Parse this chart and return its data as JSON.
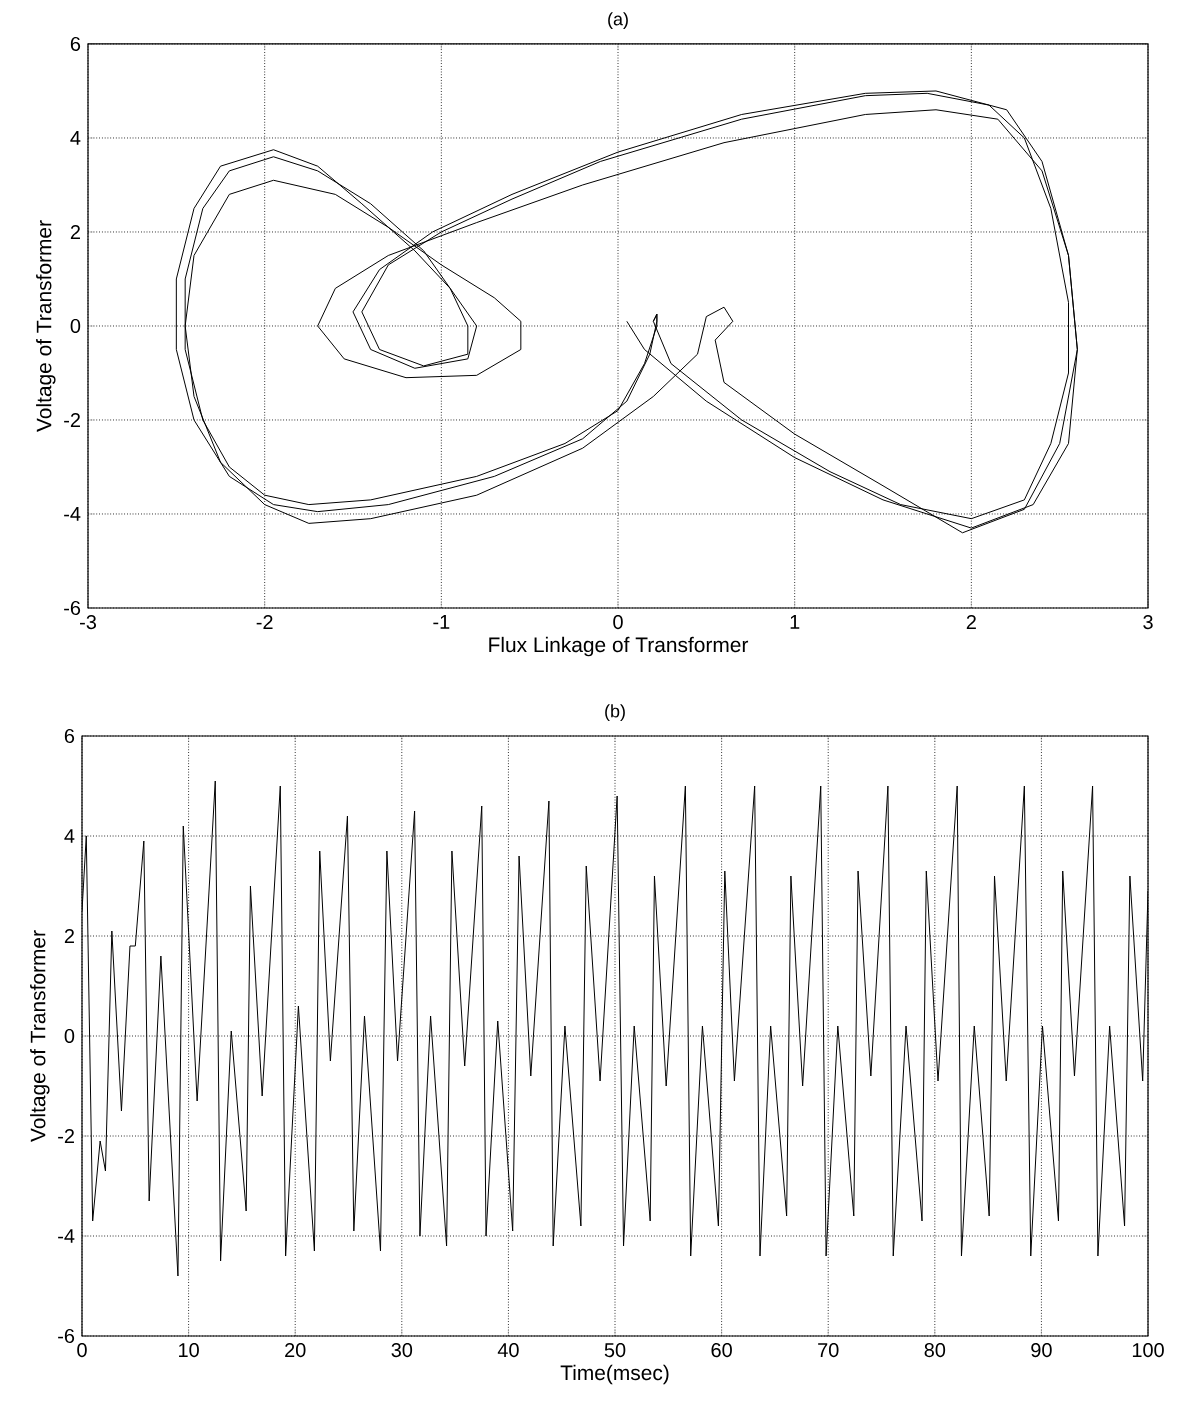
{
  "chart_data": [
    {
      "type": "line",
      "title": "(a)",
      "xlabel": "Flux Linkage of Transformer",
      "ylabel": "Voltage of Transformer",
      "color": "#000000",
      "grid": true,
      "xlim": [
        -3,
        3
      ],
      "xticks": [
        -3,
        -2,
        -1,
        0,
        1,
        2,
        3
      ],
      "ylim": [
        -6,
        6
      ],
      "yticks": [
        -6,
        -4,
        -2,
        0,
        2,
        4,
        6
      ],
      "x": [
        0.05,
        0.15,
        0.5,
        1.0,
        1.5,
        2.0,
        2.35,
        2.55,
        2.6,
        2.55,
        2.4,
        2.15,
        1.8,
        1.4,
        0.6,
        -0.2,
        -0.8,
        -1.3,
        -1.6,
        -1.7,
        -1.55,
        -1.2,
        -0.8,
        -0.55,
        -0.55,
        -0.7,
        -1.0,
        -1.3,
        -1.6,
        -1.95,
        -2.2,
        -2.4,
        -2.45,
        -2.4,
        -2.25,
        -2.0,
        -1.75,
        -1.4,
        -0.8,
        -0.2,
        0.2,
        0.45,
        0.5,
        0.6,
        0.65,
        0.55,
        0.6,
        1.0,
        1.5,
        1.95,
        2.3,
        2.5,
        2.6,
        2.55,
        2.4,
        2.2,
        1.8,
        1.4,
        0.7,
        0.0,
        -0.6,
        -1.05,
        -1.35,
        -1.5,
        -1.4,
        -1.15,
        -0.85,
        -0.8,
        -0.95,
        -1.15,
        -1.45,
        -1.7,
        -1.95,
        -2.25,
        -2.4,
        -2.5,
        -2.5,
        -2.4,
        -2.2,
        -1.95,
        -1.7,
        -1.3,
        -0.7,
        -0.2,
        0.05,
        0.18,
        0.22,
        0.22,
        0.2,
        0.3,
        0.7,
        1.2,
        1.6,
        2.0,
        2.3,
        2.45,
        2.55,
        2.55,
        2.45,
        2.3,
        2.1,
        1.75,
        1.4,
        0.7,
        -0.1,
        -0.6,
        -1.0,
        -1.3,
        -1.45,
        -1.35,
        -1.1,
        -0.85,
        -0.85,
        -0.95,
        -1.1,
        -1.4,
        -1.7,
        -1.95,
        -2.2,
        -2.35,
        -2.45,
        -2.45,
        -2.35,
        -2.2,
        -2.0,
        -1.75,
        -1.4,
        -0.8,
        -0.3,
        0.0,
        0.15,
        0.22,
        0.22,
        0.2
      ],
      "values": [
        0.1,
        -0.5,
        -1.6,
        -2.8,
        -3.7,
        -4.3,
        -3.8,
        -2.5,
        -0.5,
        1.5,
        3.3,
        4.4,
        4.6,
        4.5,
        3.9,
        3.0,
        2.2,
        1.5,
        0.8,
        0.0,
        -0.7,
        -1.1,
        -1.05,
        -0.5,
        0.1,
        0.6,
        1.3,
        2.1,
        2.8,
        3.1,
        2.8,
        1.5,
        0.0,
        -1.5,
        -2.9,
        -3.8,
        -4.2,
        -4.1,
        -3.6,
        -2.6,
        -1.5,
        -0.6,
        0.2,
        0.4,
        0.1,
        -0.3,
        -1.2,
        -2.3,
        -3.4,
        -4.4,
        -3.9,
        -2.5,
        -0.5,
        1.5,
        3.5,
        4.6,
        5.0,
        4.95,
        4.5,
        3.7,
        2.8,
        2.0,
        1.2,
        0.3,
        -0.5,
        -0.9,
        -0.7,
        0.0,
        0.8,
        1.6,
        2.6,
        3.4,
        3.75,
        3.4,
        2.5,
        1.0,
        -0.5,
        -2.0,
        -3.2,
        -3.8,
        -3.95,
        -3.8,
        -3.2,
        -2.4,
        -1.6,
        -0.6,
        0.1,
        0.25,
        0.1,
        -0.8,
        -2.0,
        -3.1,
        -3.8,
        -4.1,
        -3.7,
        -2.5,
        -1.0,
        0.5,
        2.5,
        4.0,
        4.7,
        4.95,
        4.9,
        4.4,
        3.5,
        2.7,
        2.0,
        1.3,
        0.3,
        -0.5,
        -0.85,
        -0.6,
        0.0,
        0.8,
        1.6,
        2.6,
        3.3,
        3.6,
        3.3,
        2.5,
        1.0,
        -0.5,
        -2.0,
        -3.0,
        -3.6,
        -3.8,
        -3.7,
        -3.2,
        -2.5,
        -1.8,
        -0.8,
        0.0,
        0.25,
        0.1
      ]
    },
    {
      "type": "line",
      "title": "(b)",
      "xlabel": "Time(msec)",
      "ylabel": "Voltage of Transformer",
      "color": "#000000",
      "grid": true,
      "xlim": [
        0,
        100
      ],
      "xticks": [
        0,
        10,
        20,
        30,
        40,
        50,
        60,
        70,
        80,
        90,
        100
      ],
      "ylim": [
        -6,
        6
      ],
      "yticks": [
        -6,
        -4,
        -2,
        0,
        2,
        4,
        6
      ],
      "x": [
        0,
        0.4,
        1.0,
        1.7,
        2.2,
        2.8,
        3.7,
        4.5,
        5.0,
        5.8,
        6.3,
        7.4,
        9.0,
        9.5,
        10.8,
        12.5,
        13.0,
        14.0,
        15.4,
        15.8,
        16.9,
        18.6,
        19.1,
        20.3,
        21.8,
        22.3,
        23.3,
        24.9,
        25.5,
        26.5,
        28.0,
        28.6,
        29.6,
        31.2,
        31.7,
        32.7,
        34.2,
        34.7,
        35.9,
        37.5,
        37.9,
        39.0,
        40.4,
        41.0,
        42.1,
        43.8,
        44.2,
        45.3,
        46.8,
        47.3,
        48.6,
        50.2,
        50.8,
        51.8,
        53.3,
        53.7,
        54.8,
        56.6,
        57.1,
        58.2,
        59.7,
        60.3,
        61.2,
        63.1,
        63.6,
        64.6,
        66.1,
        66.5,
        67.6,
        69.3,
        69.8,
        70.9,
        72.4,
        72.8,
        74.0,
        75.6,
        76.1,
        77.3,
        78.8,
        79.2,
        80.3,
        82.1,
        82.5,
        83.7,
        85.1,
        85.6,
        86.7,
        88.4,
        89.0,
        90.1,
        91.6,
        92.0,
        93.1,
        94.8,
        95.3,
        96.4,
        97.8,
        98.3,
        99.5,
        100
      ],
      "values": [
        2.5,
        4.0,
        -3.7,
        -2.1,
        -2.7,
        2.1,
        -1.5,
        1.8,
        1.8,
        3.9,
        -3.3,
        1.6,
        -4.8,
        4.2,
        -1.3,
        5.1,
        -4.5,
        0.1,
        -3.5,
        3.0,
        -1.2,
        5.0,
        -4.4,
        0.6,
        -4.3,
        3.7,
        -0.5,
        4.4,
        -3.9,
        0.4,
        -4.3,
        3.7,
        -0.5,
        4.5,
        -4.0,
        0.4,
        -4.2,
        3.7,
        -0.6,
        4.6,
        -4.0,
        0.3,
        -3.9,
        3.6,
        -0.8,
        4.7,
        -4.2,
        0.2,
        -3.8,
        3.4,
        -0.9,
        4.8,
        -4.2,
        0.2,
        -3.7,
        3.2,
        -1.0,
        5.0,
        -4.4,
        0.2,
        -3.8,
        3.3,
        -0.9,
        5.0,
        -4.4,
        0.2,
        -3.6,
        3.2,
        -1.0,
        5.0,
        -4.4,
        0.2,
        -3.6,
        3.3,
        -0.8,
        5.0,
        -4.4,
        0.2,
        -3.7,
        3.3,
        -0.9,
        5.0,
        -4.4,
        0.2,
        -3.6,
        3.2,
        -0.9,
        5.0,
        -4.4,
        0.2,
        -3.7,
        3.3,
        -0.8,
        5.0,
        -4.4,
        0.2,
        -3.8,
        3.2,
        -0.9,
        2.9
      ]
    }
  ]
}
